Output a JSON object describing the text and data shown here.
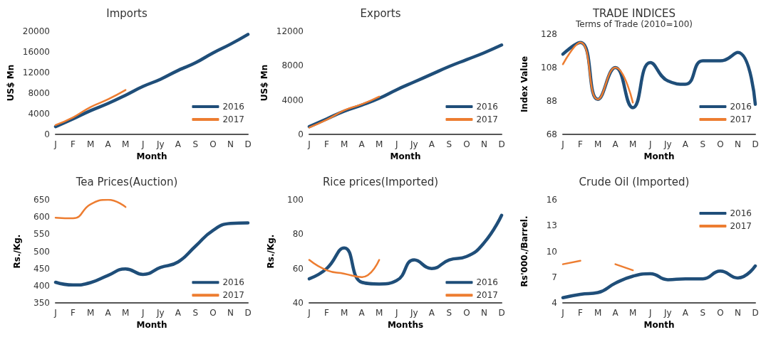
{
  "chart_data": [
    {
      "type": "line",
      "title": "Imports",
      "xlabel": "Month",
      "ylabel": "US$ Mn",
      "categories": [
        "J",
        "F",
        "M",
        "A",
        "M",
        "J",
        "Jy",
        "A",
        "S",
        "O",
        "N",
        "D"
      ],
      "ylim": [
        0,
        20000
      ],
      "yticks": [
        0,
        4000,
        8000,
        12000,
        16000,
        20000
      ],
      "grid": false,
      "legend": "bottom right",
      "series": [
        {
          "name": "2016",
          "color": "#1f4e79",
          "values": [
            1500,
            3000,
            4600,
            6000,
            7600,
            9300,
            10700,
            12400,
            13900,
            15800,
            17500,
            19400
          ]
        },
        {
          "name": "2017",
          "color": "#ed7d31",
          "values": [
            1800,
            3300,
            5300,
            6800,
            8600,
            null,
            null,
            null,
            null,
            null,
            null,
            null
          ]
        }
      ]
    },
    {
      "type": "line",
      "title": "Exports",
      "xlabel": "Month",
      "ylabel": "US$ Mn",
      "categories": [
        "J",
        "F",
        "M",
        "A",
        "M",
        "J",
        "Jy",
        "A",
        "S",
        "O",
        "N",
        "D"
      ],
      "ylim": [
        0,
        12000
      ],
      "yticks": [
        0,
        4000,
        8000,
        12000
      ],
      "grid": false,
      "legend": "bottom right",
      "series": [
        {
          "name": "2016",
          "color": "#1f4e79",
          "values": [
            900,
            1800,
            2700,
            3400,
            4200,
            5200,
            6100,
            7000,
            7900,
            8700,
            9500,
            10400
          ]
        },
        {
          "name": "2017",
          "color": "#ed7d31",
          "values": [
            800,
            1700,
            2800,
            3500,
            4400,
            null,
            null,
            null,
            null,
            null,
            null,
            null
          ]
        }
      ]
    },
    {
      "type": "line",
      "title": "TRADE INDICES",
      "subtitle": "Terms of Trade (2010=100)",
      "xlabel": "Month",
      "ylabel": "Index Value",
      "categories": [
        "J",
        "F",
        "M",
        "A",
        "M",
        "J",
        "Jy",
        "A",
        "S",
        "O",
        "N",
        "D"
      ],
      "ylim": [
        68,
        128
      ],
      "yticks": [
        68,
        88,
        108,
        128
      ],
      "grid": false,
      "legend": "bottom right",
      "series": [
        {
          "name": "2016",
          "color": "#1f4e79",
          "values": [
            116,
            123,
            89,
            108,
            84,
            111,
            100,
            98,
            112,
            112,
            117,
            86
          ]
        },
        {
          "name": "2017",
          "color": "#ed7d31",
          "values": [
            110,
            123,
            89,
            108,
            87,
            null,
            null,
            null,
            null,
            null,
            null,
            null
          ]
        }
      ]
    },
    {
      "type": "line",
      "title": "Tea Prices(Auction)",
      "xlabel": "Month",
      "ylabel": "Rs./Kg.",
      "categories": [
        "J",
        "F",
        "M",
        "A",
        "M",
        "J",
        "Jy",
        "A",
        "S",
        "O",
        "N",
        "D"
      ],
      "ylim": [
        350,
        650
      ],
      "yticks": [
        350,
        400,
        450,
        500,
        550,
        600,
        650
      ],
      "grid": false,
      "legend": "right",
      "series": [
        {
          "name": "2016",
          "color": "#1f4e79",
          "values": [
            410,
            402,
            409,
            430,
            449,
            433,
            453,
            469,
            515,
            561,
            581,
            583
          ]
        },
        {
          "name": "2017",
          "color": "#ed7d31",
          "values": [
            598,
            596,
            637,
            650,
            629,
            null,
            null,
            null,
            null,
            null,
            null,
            null
          ]
        }
      ]
    },
    {
      "type": "line",
      "title": "Rice prices(Imported)",
      "xlabel": "Months",
      "ylabel": "Rs./Kg.",
      "categories": [
        "J",
        "F",
        "M",
        "A",
        "M",
        "J",
        "Jy",
        "A",
        "S",
        "O",
        "N",
        "D"
      ],
      "ylim": [
        40,
        100
      ],
      "yticks": [
        40,
        60,
        80,
        100
      ],
      "grid": false,
      "legend": "right",
      "series": [
        {
          "name": "2016",
          "color": "#1f4e79",
          "values": [
            54,
            60,
            72,
            52,
            51,
            53,
            65,
            60,
            65,
            67,
            75,
            91
          ]
        },
        {
          "name": "2017",
          "color": "#ed7d31",
          "values": [
            65,
            59,
            57,
            55,
            65,
            null,
            null,
            null,
            null,
            null,
            null,
            null
          ]
        }
      ]
    },
    {
      "type": "line",
      "title": "Crude Oil (Imported)",
      "xlabel": "Month",
      "ylabel": "Rs'000./Barrel.",
      "categories": [
        "J",
        "F",
        "M",
        "A",
        "M",
        "J",
        "Jy",
        "A",
        "S",
        "O",
        "N",
        "D"
      ],
      "ylim": [
        4,
        16
      ],
      "yticks": [
        4,
        7,
        10,
        13,
        16
      ],
      "grid": false,
      "legend": "top right",
      "series": [
        {
          "name": "2016",
          "color": "#1f4e79",
          "values": [
            4.6,
            5.0,
            5.2,
            6.3,
            7.1,
            7.4,
            6.7,
            6.8,
            6.8,
            7.7,
            6.9,
            8.3
          ]
        },
        {
          "name": "2017",
          "color": "#ed7d31",
          "values": [
            8.5,
            8.9,
            null,
            8.5,
            7.8,
            null,
            null,
            null,
            null,
            null,
            null,
            null
          ]
        }
      ]
    }
  ]
}
